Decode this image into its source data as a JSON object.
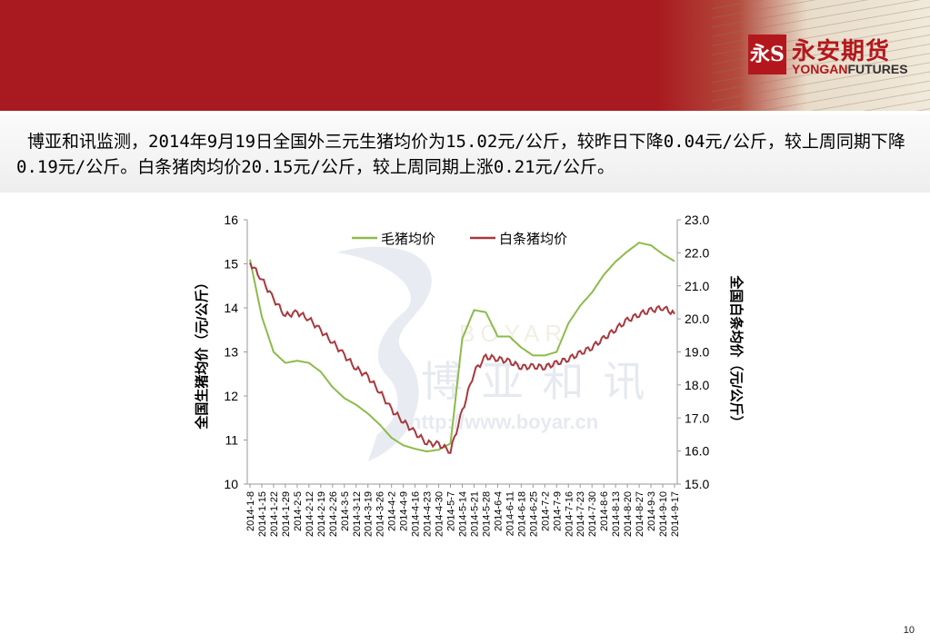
{
  "header": {
    "logo_mark": "永S",
    "logo_cn": "永安期货",
    "logo_en_prefix": "YONGAN",
    "logo_en_suffix": "FUTURES"
  },
  "summary": "博亚和讯监测，2014年9月19日全国外三元生猪均价为15.02元/公斤，较昨日下降0.04元/公斤，较上周同期下降0.19元/公斤。白条猪肉均价20.15元/公斤，较上周同期上涨0.21元/公斤。",
  "watermark": {
    "brand": "博 亚 和 讯",
    "url": "http://www.boyar.cn",
    "letters": "BOYAR"
  },
  "page_number": "10",
  "colors": {
    "banner": "#a81a1f",
    "hog_series": "#8dbb4a",
    "pork_series": "#a8383e"
  },
  "chart_data": {
    "type": "line",
    "title": "",
    "legend": [
      "毛猪均价",
      "白条猪均价"
    ],
    "legend_position": "top",
    "ylabel_left": "全国生猪均价（元/公斤）",
    "ylabel_right": "全国白条均价（元/公斤）",
    "ylim_left": [
      10,
      16
    ],
    "ylim_right": [
      15.0,
      23.0
    ],
    "yticks_left": [
      "10",
      "11",
      "12",
      "13",
      "14",
      "15",
      "16"
    ],
    "yticks_right": [
      "15.0",
      "16.0",
      "17.0",
      "18.0",
      "19.0",
      "20.0",
      "21.0",
      "22.0",
      "23.0"
    ],
    "x_ticks": [
      "2014-1-8",
      "2014-1-15",
      "2014-1-22",
      "2014-1-29",
      "2014-2-5",
      "2014-2-12",
      "2014-2-19",
      "2014-2-26",
      "2014-3-5",
      "2014-3-12",
      "2014-3-19",
      "2014-3-26",
      "2014-4-2",
      "2014-4-9",
      "2014-4-16",
      "2014-4-23",
      "2014-4-30",
      "2014-5-7",
      "2014-5-14",
      "2014-5-21",
      "2014-5-28",
      "2014-6-4",
      "2014-6-11",
      "2014-6-18",
      "2014-6-25",
      "2014-7-2",
      "2014-7-9",
      "2014-7-16",
      "2014-7-23",
      "2014-7-30",
      "2014-8-6",
      "2014-8-13",
      "2014-8-20",
      "2014-8-27",
      "2014-9-3",
      "2014-9-10",
      "2014-9-17"
    ],
    "grid": false,
    "series": [
      {
        "name": "毛猪均价",
        "axis": "left",
        "values": [
          15.1,
          13.8,
          13.0,
          12.75,
          12.8,
          12.75,
          12.55,
          12.2,
          11.95,
          11.8,
          11.6,
          11.35,
          11.05,
          10.88,
          10.8,
          10.74,
          10.78,
          10.92,
          13.3,
          13.95,
          13.9,
          13.35,
          13.35,
          13.1,
          12.92,
          12.92,
          13.0,
          13.65,
          14.05,
          14.35,
          14.75,
          15.05,
          15.28,
          15.48,
          15.42,
          15.22,
          15.06
        ]
      },
      {
        "name": "白条猪均价",
        "axis": "right",
        "values": [
          21.7,
          21.2,
          20.6,
          20.1,
          20.2,
          20.0,
          19.65,
          19.3,
          18.9,
          18.5,
          18.25,
          17.8,
          17.25,
          16.9,
          16.55,
          16.25,
          16.2,
          16.0,
          17.2,
          18.4,
          18.85,
          18.8,
          18.7,
          18.55,
          18.55,
          18.55,
          18.65,
          18.8,
          18.95,
          19.15,
          19.4,
          19.7,
          19.95,
          20.15,
          20.25,
          20.35,
          20.15
        ]
      }
    ]
  }
}
